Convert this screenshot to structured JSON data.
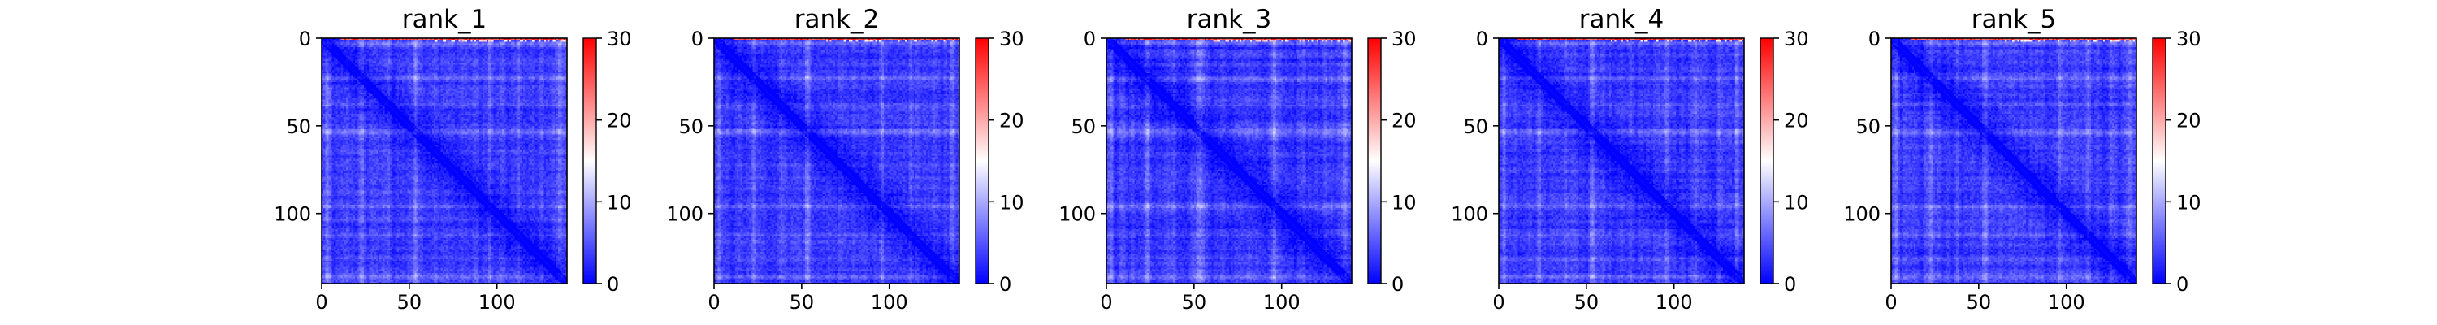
{
  "chart_data": [
    {
      "type": "heatmap",
      "title": "rank_1",
      "seed": 1,
      "matrix_size": 140,
      "x_ticks": [
        0,
        50,
        100
      ],
      "y_ticks": [
        0,
        50,
        100
      ],
      "xlim": [
        0,
        140
      ],
      "ylim": [
        140,
        0
      ],
      "colorbar": {
        "range": [
          0,
          30
        ],
        "ticks": [
          0,
          10,
          20,
          30
        ],
        "colormap": "bwr"
      }
    },
    {
      "type": "heatmap",
      "title": "rank_2",
      "seed": 2,
      "matrix_size": 140,
      "x_ticks": [
        0,
        50,
        100
      ],
      "y_ticks": [
        0,
        50,
        100
      ],
      "xlim": [
        0,
        140
      ],
      "ylim": [
        140,
        0
      ],
      "colorbar": {
        "range": [
          0,
          30
        ],
        "ticks": [
          0,
          10,
          20,
          30
        ],
        "colormap": "bwr"
      }
    },
    {
      "type": "heatmap",
      "title": "rank_3",
      "seed": 3,
      "matrix_size": 140,
      "x_ticks": [
        0,
        50,
        100
      ],
      "y_ticks": [
        0,
        50,
        100
      ],
      "xlim": [
        0,
        140
      ],
      "ylim": [
        140,
        0
      ],
      "colorbar": {
        "range": [
          0,
          30
        ],
        "ticks": [
          0,
          10,
          20,
          30
        ],
        "colormap": "bwr"
      }
    },
    {
      "type": "heatmap",
      "title": "rank_4",
      "seed": 4,
      "matrix_size": 140,
      "x_ticks": [
        0,
        50,
        100
      ],
      "y_ticks": [
        0,
        50,
        100
      ],
      "xlim": [
        0,
        140
      ],
      "ylim": [
        140,
        0
      ],
      "colorbar": {
        "range": [
          0,
          30
        ],
        "ticks": [
          0,
          10,
          20,
          30
        ],
        "colormap": "bwr"
      }
    },
    {
      "type": "heatmap",
      "title": "rank_5",
      "seed": 5,
      "matrix_size": 140,
      "x_ticks": [
        0,
        50,
        100
      ],
      "y_ticks": [
        0,
        50,
        100
      ],
      "xlim": [
        0,
        140
      ],
      "ylim": [
        140,
        0
      ],
      "colorbar": {
        "range": [
          0,
          30
        ],
        "ticks": [
          0,
          10,
          20,
          30
        ],
        "colormap": "bwr"
      }
    }
  ],
  "colors": {
    "low": "#0000ff",
    "mid": "#ffffff",
    "high": "#ff0000"
  }
}
